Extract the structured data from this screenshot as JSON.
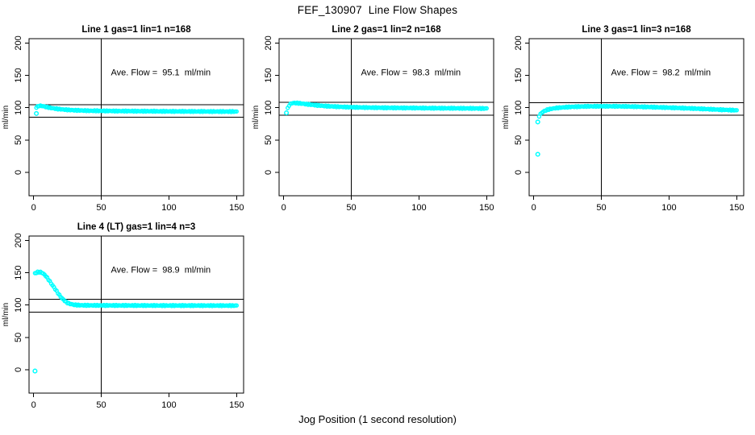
{
  "chart_data": {
    "type": "scatter",
    "title": "FEF_130907  Line Flow Shapes",
    "xlabel": "Jog Position (1 second resolution)",
    "point_color": "#00ffff",
    "axis_color": "#000000",
    "layout_hint": "2 rows x 3 cols grid, 4 panels used, grid off, no legend",
    "axes": {
      "ylabel": "ml/min",
      "xlim": [
        -3.4,
        155.2
      ],
      "ylim": [
        -36.2,
        206.8
      ],
      "xticks": [
        0,
        50,
        100,
        150
      ],
      "yticks": [
        0,
        50,
        100,
        150,
        200
      ]
    },
    "panels": [
      {
        "title": "Line 1 gas=1 lin=1 n=168",
        "annotation": "Ave. Flow =  95.1  ml/min",
        "ave_flow_ml_min": 95.1,
        "vline_x": 50,
        "hlines": [
          104.6,
          85.6
        ],
        "curve": [
          [
            2,
            100.5
          ],
          [
            4,
            103
          ],
          [
            6,
            102.8
          ],
          [
            8,
            101.8
          ],
          [
            10,
            100.8
          ],
          [
            13,
            99.6
          ],
          [
            16,
            98.6
          ],
          [
            20,
            97.6
          ],
          [
            25,
            96.7
          ],
          [
            30,
            96.1
          ],
          [
            40,
            95.4
          ],
          [
            50,
            95.1
          ],
          [
            60,
            94.9
          ],
          [
            80,
            94.6
          ],
          [
            100,
            94.4
          ],
          [
            120,
            94.2
          ],
          [
            150,
            94
          ]
        ],
        "outliers": [
          [
            2,
            91
          ]
        ]
      },
      {
        "title": "Line 2 gas=1 lin=2 n=168",
        "annotation": "Ave. Flow =  98.3  ml/min",
        "ave_flow_ml_min": 98.3,
        "vline_x": 50,
        "hlines": [
          108.1,
          88.5
        ],
        "curve": [
          [
            3,
            99
          ],
          [
            4,
            103.5
          ],
          [
            5,
            105.8
          ],
          [
            6,
            106.9
          ],
          [
            8,
            107.4
          ],
          [
            10,
            107.2
          ],
          [
            13,
            106.5
          ],
          [
            16,
            105.7
          ],
          [
            20,
            104.7
          ],
          [
            25,
            103.6
          ],
          [
            30,
            102.7
          ],
          [
            40,
            101.5
          ],
          [
            50,
            100.8
          ],
          [
            60,
            100.3
          ],
          [
            80,
            99.8
          ],
          [
            100,
            99.5
          ],
          [
            120,
            99.2
          ],
          [
            150,
            98.8
          ]
        ],
        "outliers": [
          [
            2,
            92
          ]
        ]
      },
      {
        "title": "Line 3 gas=1 lin=3 n=168",
        "annotation": "Ave. Flow =  98.2  ml/min",
        "ave_flow_ml_min": 98.2,
        "vline_x": 50,
        "hlines": [
          108.0,
          88.4
        ],
        "curve": [
          [
            4,
            87
          ],
          [
            5,
            90
          ],
          [
            6,
            92.5
          ],
          [
            8,
            95
          ],
          [
            10,
            96.9
          ],
          [
            13,
            98.4
          ],
          [
            16,
            99.4
          ],
          [
            20,
            100.3
          ],
          [
            25,
            101
          ],
          [
            30,
            101.5
          ],
          [
            40,
            102.1
          ],
          [
            50,
            102.3
          ],
          [
            60,
            102.2
          ],
          [
            70,
            101.9
          ],
          [
            80,
            101.4
          ],
          [
            90,
            100.8
          ],
          [
            100,
            100.1
          ],
          [
            110,
            99.4
          ],
          [
            120,
            98.6
          ],
          [
            130,
            97.7
          ],
          [
            140,
            96.8
          ],
          [
            150,
            96
          ]
        ],
        "outliers": [
          [
            3,
            78
          ],
          [
            3,
            28
          ]
        ]
      },
      {
        "title": "Line 4 (LT) gas=1 lin=4 n=3",
        "annotation": "Ave. Flow =  98.9  ml/min",
        "ave_flow_ml_min": 98.9,
        "vline_x": 50,
        "hlines": [
          108.8,
          89.0
        ],
        "curve": [
          [
            1,
            149
          ],
          [
            3,
            151
          ],
          [
            5,
            151
          ],
          [
            7,
            149
          ],
          [
            9,
            145
          ],
          [
            11,
            139.5
          ],
          [
            13,
            133.5
          ],
          [
            15,
            127.5
          ],
          [
            17,
            121.5
          ],
          [
            19,
            115.5
          ],
          [
            21,
            110.5
          ],
          [
            23,
            106.5
          ],
          [
            25,
            103.5
          ],
          [
            27,
            101.8
          ],
          [
            30,
            100.4
          ],
          [
            34,
            99.8
          ],
          [
            40,
            99.6
          ],
          [
            50,
            99.5
          ],
          [
            70,
            99.4
          ],
          [
            100,
            99.3
          ],
          [
            150,
            99.2
          ]
        ],
        "outliers": [
          [
            1,
            -2
          ]
        ]
      }
    ]
  }
}
